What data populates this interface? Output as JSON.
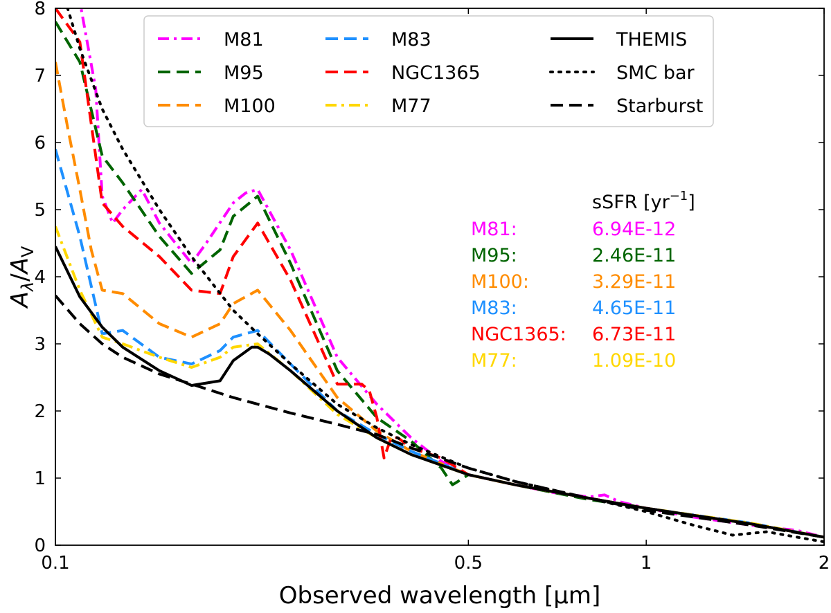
{
  "chart_data": {
    "type": "line",
    "title": "",
    "xlabel": "Observed wavelength [μm]",
    "ylabel_main": "A",
    "ylabel_num_sub": "λ",
    "ylabel_den": "A",
    "ylabel_den_sub": "V",
    "xscale": "log",
    "xlim": [
      0.1,
      2
    ],
    "ylim": [
      0,
      8
    ],
    "legend_location": "upper",
    "x_ticks": [
      {
        "value": 0.1,
        "label": "0.1"
      },
      {
        "value": 0.5,
        "label": "0.5"
      },
      {
        "value": 1,
        "label": "1"
      },
      {
        "value": 2,
        "label": "2"
      }
    ],
    "y_ticks": [
      {
        "value": 0,
        "label": "0"
      },
      {
        "value": 1,
        "label": "1"
      },
      {
        "value": 2,
        "label": "2"
      },
      {
        "value": 3,
        "label": "3"
      },
      {
        "value": 4,
        "label": "4"
      },
      {
        "value": 5,
        "label": "5"
      },
      {
        "value": 6,
        "label": "6"
      },
      {
        "value": 7,
        "label": "7"
      },
      {
        "value": 8,
        "label": "8"
      }
    ],
    "series": [
      {
        "name": "M81",
        "color": "#ff00ff",
        "style": "dashdot",
        "x": [
          0.1,
          0.11,
          0.117,
          0.12,
          0.125,
          0.13,
          0.14,
          0.15,
          0.17,
          0.18,
          0.2,
          0.21,
          0.22,
          0.25,
          0.3,
          0.35,
          0.4,
          0.45,
          0.5,
          0.6,
          0.7,
          0.8,
          0.85,
          0.9,
          1.0,
          1.2,
          1.5,
          1.8,
          2.0
        ],
        "y": [
          8.4,
          8.1,
          6.8,
          5.2,
          4.8,
          5.0,
          5.3,
          4.8,
          4.2,
          4.5,
          5.1,
          5.25,
          5.3,
          4.4,
          2.8,
          2.1,
          1.6,
          1.25,
          1.05,
          0.9,
          0.78,
          0.72,
          0.75,
          0.65,
          0.55,
          0.42,
          0.3,
          0.22,
          0.12
        ]
      },
      {
        "name": "M95",
        "color": "#006400",
        "style": "dashed",
        "x": [
          0.1,
          0.11,
          0.12,
          0.13,
          0.15,
          0.17,
          0.19,
          0.2,
          0.22,
          0.25,
          0.3,
          0.35,
          0.4,
          0.45,
          0.47,
          0.48,
          0.5,
          0.6,
          0.7,
          0.8,
          1.0,
          1.5,
          2.0
        ],
        "y": [
          7.8,
          7.2,
          5.8,
          5.4,
          4.6,
          4.05,
          4.4,
          4.9,
          5.2,
          4.2,
          2.6,
          1.9,
          1.55,
          1.15,
          0.9,
          0.95,
          1.05,
          0.9,
          0.78,
          0.68,
          0.55,
          0.32,
          0.12
        ]
      },
      {
        "name": "M100",
        "color": "#ff8c00",
        "style": "dashed",
        "x": [
          0.1,
          0.105,
          0.11,
          0.115,
          0.12,
          0.13,
          0.15,
          0.17,
          0.19,
          0.2,
          0.22,
          0.25,
          0.3,
          0.35,
          0.4,
          0.5,
          0.6,
          0.8,
          1.0,
          1.5,
          2.0
        ],
        "y": [
          7.2,
          6.2,
          5.3,
          4.4,
          3.8,
          3.75,
          3.3,
          3.1,
          3.3,
          3.6,
          3.8,
          3.2,
          2.2,
          1.7,
          1.4,
          1.05,
          0.9,
          0.7,
          0.55,
          0.32,
          0.12
        ]
      },
      {
        "name": "M83",
        "color": "#1e90ff",
        "style": "dashed",
        "x": [
          0.1,
          0.11,
          0.12,
          0.13,
          0.15,
          0.17,
          0.19,
          0.2,
          0.22,
          0.25,
          0.3,
          0.35,
          0.4,
          0.5,
          0.6,
          0.8,
          1.0,
          1.5,
          2.0
        ],
        "y": [
          5.9,
          4.6,
          3.15,
          3.2,
          2.8,
          2.7,
          2.9,
          3.1,
          3.2,
          2.7,
          2.0,
          1.65,
          1.4,
          1.05,
          0.9,
          0.7,
          0.55,
          0.33,
          0.12
        ]
      },
      {
        "name": "NGC1365",
        "color": "#ff0000",
        "style": "dashed",
        "x": [
          0.1,
          0.11,
          0.12,
          0.13,
          0.15,
          0.17,
          0.19,
          0.2,
          0.22,
          0.25,
          0.3,
          0.33,
          0.34,
          0.35,
          0.36,
          0.37,
          0.38,
          0.4,
          0.45,
          0.5,
          0.6,
          0.8,
          1.0,
          1.5,
          2.0
        ],
        "y": [
          8.0,
          7.5,
          5.1,
          4.75,
          4.3,
          3.8,
          3.75,
          4.3,
          4.8,
          3.95,
          2.4,
          2.4,
          2.3,
          1.9,
          1.3,
          1.6,
          1.6,
          1.45,
          1.3,
          1.05,
          0.9,
          0.7,
          0.55,
          0.32,
          0.12
        ]
      },
      {
        "name": "M77",
        "color": "#ffd700",
        "style": "dashdot",
        "x": [
          0.1,
          0.11,
          0.12,
          0.13,
          0.15,
          0.17,
          0.19,
          0.2,
          0.22,
          0.25,
          0.3,
          0.35,
          0.4,
          0.5,
          0.6,
          0.8,
          1.0,
          1.5,
          2.0
        ],
        "y": [
          4.75,
          3.8,
          3.1,
          3.0,
          2.8,
          2.65,
          2.8,
          2.95,
          3.0,
          2.6,
          1.95,
          1.6,
          1.35,
          1.05,
          0.9,
          0.7,
          0.55,
          0.33,
          0.12
        ]
      },
      {
        "name": "THEMIS",
        "color": "#000000",
        "style": "solid",
        "x": [
          0.1,
          0.11,
          0.12,
          0.13,
          0.15,
          0.17,
          0.19,
          0.2,
          0.215,
          0.22,
          0.23,
          0.25,
          0.3,
          0.35,
          0.4,
          0.5,
          0.6,
          0.8,
          1.0,
          1.5,
          2.0
        ],
        "y": [
          4.45,
          3.7,
          3.25,
          2.95,
          2.6,
          2.38,
          2.45,
          2.75,
          2.95,
          2.95,
          2.85,
          2.6,
          2.0,
          1.6,
          1.35,
          1.05,
          0.9,
          0.7,
          0.55,
          0.32,
          0.12
        ]
      },
      {
        "name": "SMC bar",
        "color": "#000000",
        "style": "dotted",
        "x": [
          0.1,
          0.11,
          0.12,
          0.13,
          0.15,
          0.17,
          0.2,
          0.22,
          0.25,
          0.3,
          0.35,
          0.4,
          0.5,
          0.6,
          0.8,
          1.0,
          1.2,
          1.4,
          1.6,
          1.8,
          2.0
        ],
        "y": [
          8.6,
          7.4,
          6.5,
          5.9,
          5.0,
          4.3,
          3.5,
          3.15,
          2.7,
          2.1,
          1.75,
          1.5,
          1.15,
          0.95,
          0.7,
          0.5,
          0.3,
          0.15,
          0.2,
          0.12,
          0.05
        ]
      },
      {
        "name": "Starburst",
        "color": "#000000",
        "style": "dashed",
        "x": [
          0.1,
          0.11,
          0.12,
          0.13,
          0.15,
          0.17,
          0.2,
          0.25,
          0.3,
          0.35,
          0.4,
          0.5,
          0.6,
          0.8,
          1.0,
          1.5,
          2.0
        ],
        "y": [
          3.72,
          3.3,
          3.0,
          2.8,
          2.55,
          2.4,
          2.2,
          1.97,
          1.8,
          1.65,
          1.45,
          1.15,
          0.95,
          0.7,
          0.52,
          0.3,
          0.12
        ]
      }
    ],
    "legend": [
      {
        "label": "M81",
        "series": 0,
        "col": 0,
        "row": 0
      },
      {
        "label": "M95",
        "series": 1,
        "col": 0,
        "row": 1
      },
      {
        "label": "M100",
        "series": 2,
        "col": 0,
        "row": 2
      },
      {
        "label": "M83",
        "series": 3,
        "col": 1,
        "row": 0
      },
      {
        "label": "NGC1365",
        "series": 4,
        "col": 1,
        "row": 1
      },
      {
        "label": "M77",
        "series": 5,
        "col": 1,
        "row": 2
      },
      {
        "label": "THEMIS",
        "series": 6,
        "col": 2,
        "row": 0
      },
      {
        "label": "SMC bar",
        "series": 7,
        "col": 2,
        "row": 1
      },
      {
        "label": "Starburst",
        "series": 8,
        "col": 2,
        "row": 2
      }
    ],
    "annotation": {
      "header_text": "sSFR [yr",
      "header_sup": "−1",
      "header_close": "]",
      "rows": [
        {
          "name": "M81:",
          "value": "6.94E-12",
          "color": "#ff00ff"
        },
        {
          "name": "M95:",
          "value": "2.46E-11",
          "color": "#006400"
        },
        {
          "name": "M100:",
          "value": "3.29E-11",
          "color": "#ff8c00"
        },
        {
          "name": "M83:",
          "value": "4.65E-11",
          "color": "#1e90ff"
        },
        {
          "name": "NGC1365:",
          "value": "6.73E-11",
          "color": "#ff0000"
        },
        {
          "name": "M77:",
          "value": "1.09E-10",
          "color": "#ffd700"
        }
      ]
    }
  }
}
